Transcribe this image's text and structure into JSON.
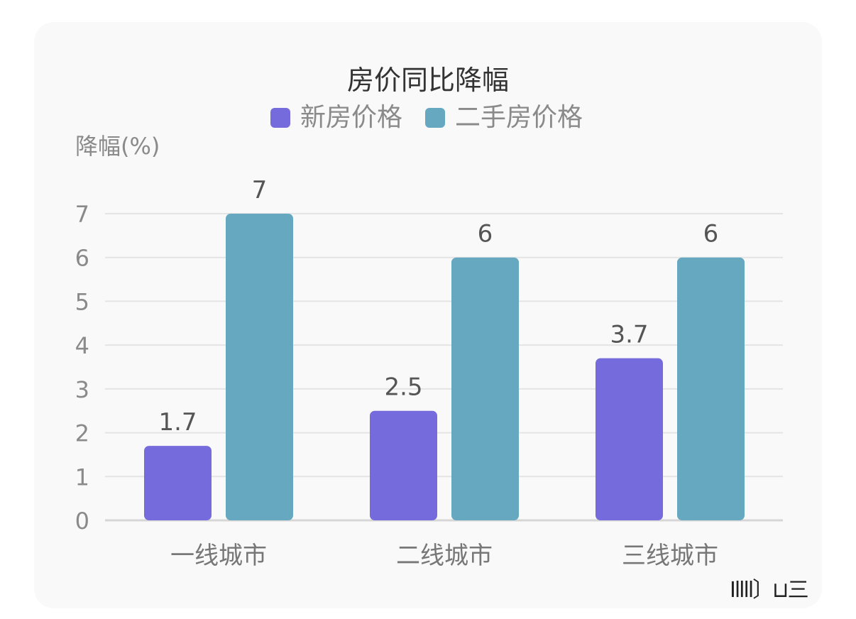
{
  "chart_data": {
    "type": "bar",
    "title": "房价同比降幅",
    "ylabel": "降幅(%)",
    "xlabel": "",
    "categories": [
      "一线城市",
      "二线城市",
      "三线城市"
    ],
    "series": [
      {
        "name": "新房价格",
        "values": [
          1.7,
          2.5,
          3.7
        ],
        "color": "#766bdc"
      },
      {
        "name": "二手房价格",
        "values": [
          7,
          6,
          6
        ],
        "color": "#66a8c0"
      }
    ],
    "ylim": [
      0,
      7
    ],
    "yticks": [
      0,
      1,
      2,
      3,
      4,
      5,
      6,
      7
    ],
    "value_labels": [
      [
        "1.7",
        "2.5",
        "3.7"
      ],
      [
        "7",
        "6",
        "6"
      ]
    ],
    "grid": true,
    "legend_position": "top-center"
  },
  "watermark": "Ⅰllll〕⊔三"
}
